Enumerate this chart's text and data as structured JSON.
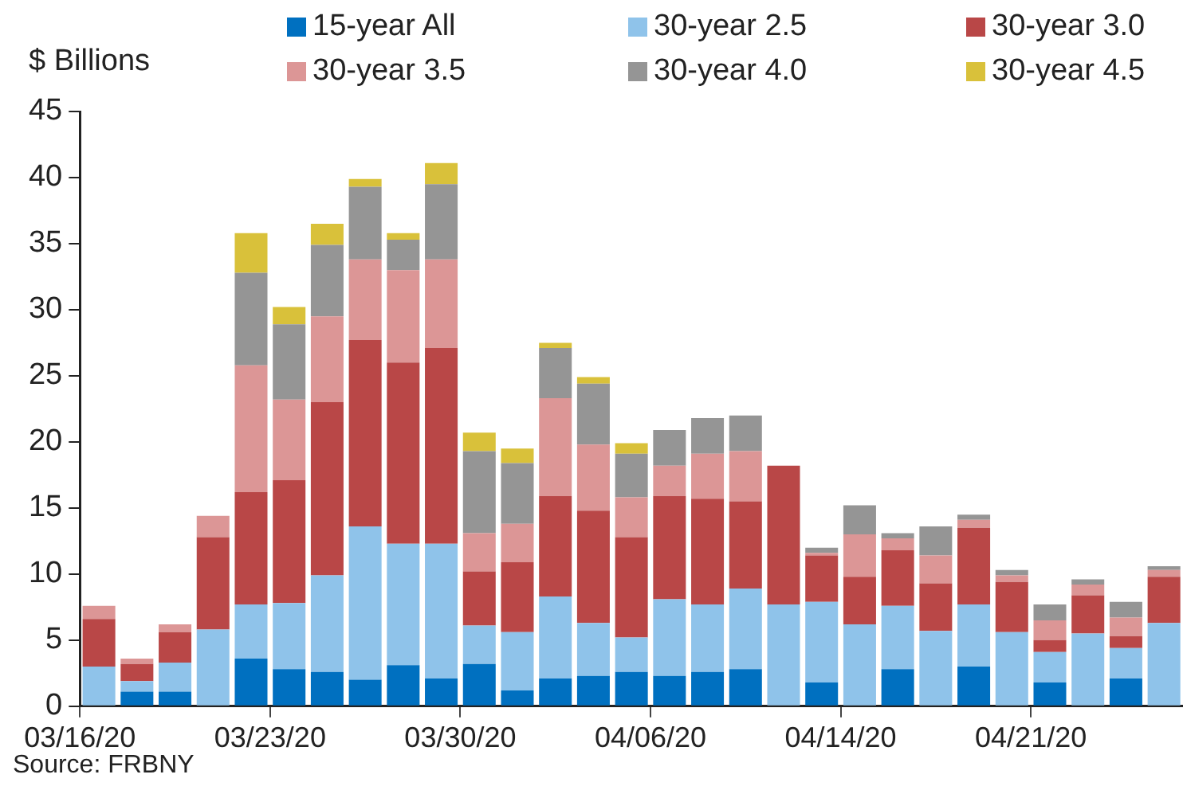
{
  "chart_data": {
    "type": "bar",
    "stacked": true,
    "ylabel": "$ Billions",
    "legend": "top",
    "grid": false,
    "categories": [
      "03/16/20",
      null,
      null,
      null,
      null,
      "03/23/20",
      null,
      null,
      null,
      null,
      "03/30/20",
      null,
      null,
      null,
      null,
      "04/06/20",
      null,
      null,
      null,
      null,
      "04/14/20",
      null,
      null,
      null,
      null,
      "04/21/20",
      null,
      null,
      null
    ],
    "ylim": [
      0,
      45
    ],
    "yticks": [
      0,
      5,
      10,
      15,
      20,
      25,
      30,
      35,
      40,
      45
    ],
    "series": [
      {
        "name": "15-year All",
        "color": "#0070c0",
        "values": [
          null,
          1.1,
          1.1,
          null,
          3.6,
          2.8,
          2.6,
          2.0,
          3.1,
          2.1,
          3.2,
          1.2,
          2.1,
          2.3,
          2.6,
          2.3,
          2.6,
          2.8,
          null,
          1.8,
          null,
          2.8,
          null,
          3.0,
          null,
          1.8,
          null,
          2.1,
          null
        ]
      },
      {
        "name": "30-year 2.5",
        "color": "#8fc3ea",
        "values": [
          3.0,
          0.8,
          2.2,
          5.8,
          4.1,
          5.0,
          7.3,
          11.6,
          9.2,
          10.2,
          2.9,
          4.4,
          6.2,
          4.0,
          2.6,
          5.8,
          5.1,
          6.1,
          7.7,
          6.1,
          6.2,
          4.8,
          5.7,
          4.7,
          5.6,
          2.3,
          5.5,
          2.3,
          6.3
        ]
      },
      {
        "name": "30-year 3.0",
        "color": "#b94747",
        "values": [
          3.6,
          1.3,
          2.3,
          7.0,
          8.5,
          9.3,
          13.1,
          14.1,
          13.7,
          14.8,
          4.1,
          5.3,
          7.6,
          8.5,
          7.6,
          7.8,
          8.0,
          6.6,
          10.5,
          3.5,
          3.6,
          4.2,
          3.6,
          5.8,
          3.8,
          0.9,
          2.9,
          0.9,
          3.5
        ]
      },
      {
        "name": "30-year 3.5",
        "color": "#dc9696",
        "values": [
          1.0,
          0.4,
          0.6,
          1.6,
          9.6,
          6.1,
          6.5,
          6.1,
          7.0,
          6.7,
          2.9,
          2.9,
          7.4,
          5.0,
          3.0,
          2.3,
          3.4,
          3.8,
          null,
          0.2,
          3.2,
          0.9,
          2.1,
          0.6,
          0.5,
          1.5,
          0.8,
          1.4,
          0.5
        ]
      },
      {
        "name": "30-year 4.0",
        "color": "#959595",
        "values": [
          null,
          null,
          null,
          null,
          7.0,
          5.7,
          5.4,
          5.5,
          2.3,
          5.7,
          6.2,
          4.6,
          3.8,
          4.6,
          3.3,
          2.7,
          2.7,
          2.7,
          null,
          0.4,
          2.2,
          0.4,
          2.2,
          0.4,
          0.4,
          1.2,
          0.4,
          1.2,
          0.3
        ]
      },
      {
        "name": "30-year 4.5",
        "color": "#d9c13a",
        "values": [
          null,
          null,
          null,
          null,
          3.0,
          1.3,
          1.6,
          0.6,
          0.5,
          1.6,
          1.4,
          1.1,
          0.4,
          0.5,
          0.8,
          null,
          null,
          null,
          null,
          null,
          null,
          null,
          null,
          null,
          null,
          null,
          null,
          null,
          null
        ]
      }
    ],
    "annotations": [
      "Source: FRBNY"
    ]
  }
}
